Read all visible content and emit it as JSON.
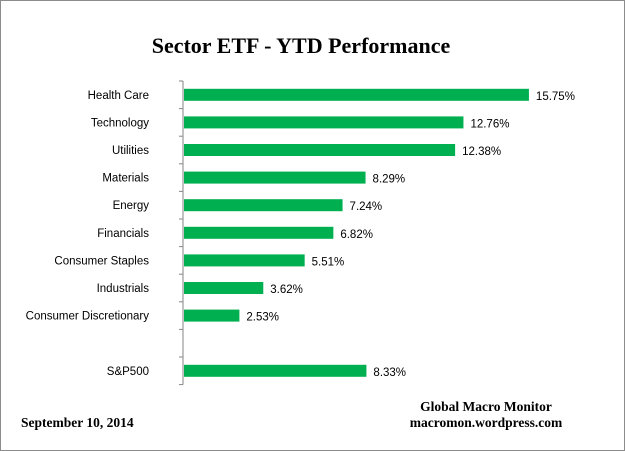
{
  "chart_data": {
    "type": "bar",
    "orientation": "horizontal",
    "title": "Sector ETF - YTD  Performance",
    "categories": [
      "Health Care",
      "Technology",
      "Utilities",
      "Materials",
      "Energy",
      "Financials",
      "Consumer Staples",
      "Industrials",
      "Consumer Discretionary",
      "",
      "S&P500"
    ],
    "values": [
      15.75,
      12.76,
      12.38,
      8.29,
      7.24,
      6.82,
      5.51,
      3.62,
      2.53,
      null,
      8.33
    ],
    "data_labels": [
      "15.75%",
      "12.76%",
      "12.38%",
      "8.29%",
      "7.24%",
      "6.82%",
      "5.51%",
      "3.62%",
      "2.53%",
      "",
      "8.33%"
    ],
    "unit": "%",
    "xlim": [
      0,
      20
    ],
    "grid": false,
    "legend": "none",
    "bar_color": "#00b050"
  },
  "footer": {
    "date": "September 10,  2014",
    "source_name": "Global Macro Monitor",
    "source_url": "macromon.wordpress.com"
  }
}
